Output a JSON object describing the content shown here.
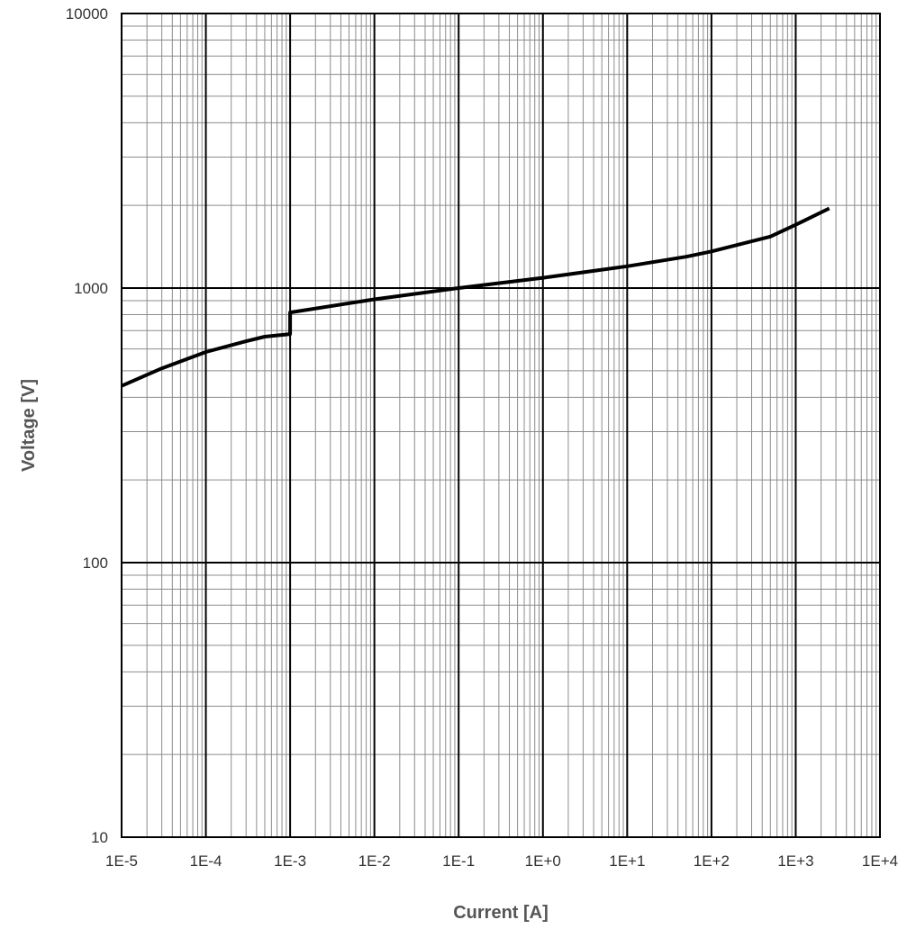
{
  "chart_data": {
    "type": "line",
    "title": "",
    "xlabel": "Current [A]",
    "ylabel": "Voltage  [V]",
    "xscale": "log",
    "yscale": "log",
    "xlim": [
      1e-05,
      10000
    ],
    "ylim": [
      10,
      10000
    ],
    "grid": {
      "major": true,
      "minor": true
    },
    "legend": "none",
    "x_tick_labels": [
      "1E-5",
      "1E-4",
      "1E-3",
      "1E-2",
      "1E-1",
      "1E+0",
      "1E+1",
      "1E+2",
      "1E+3",
      "1E+4"
    ],
    "y_tick_labels": [
      "10",
      "100",
      "1000",
      "10000"
    ],
    "series": [
      {
        "color": "#000000",
        "x": [
          1e-05,
          3e-05,
          0.0001,
          0.0003,
          0.0005,
          0.001,
          0.001,
          0.01,
          0.1,
          1,
          10,
          50,
          100,
          500,
          1000,
          2500
        ],
        "y": [
          440,
          510,
          585,
          640,
          665,
          680,
          815,
          910,
          1000,
          1090,
          1200,
          1300,
          1360,
          1540,
          1700,
          1950
        ]
      }
    ]
  }
}
